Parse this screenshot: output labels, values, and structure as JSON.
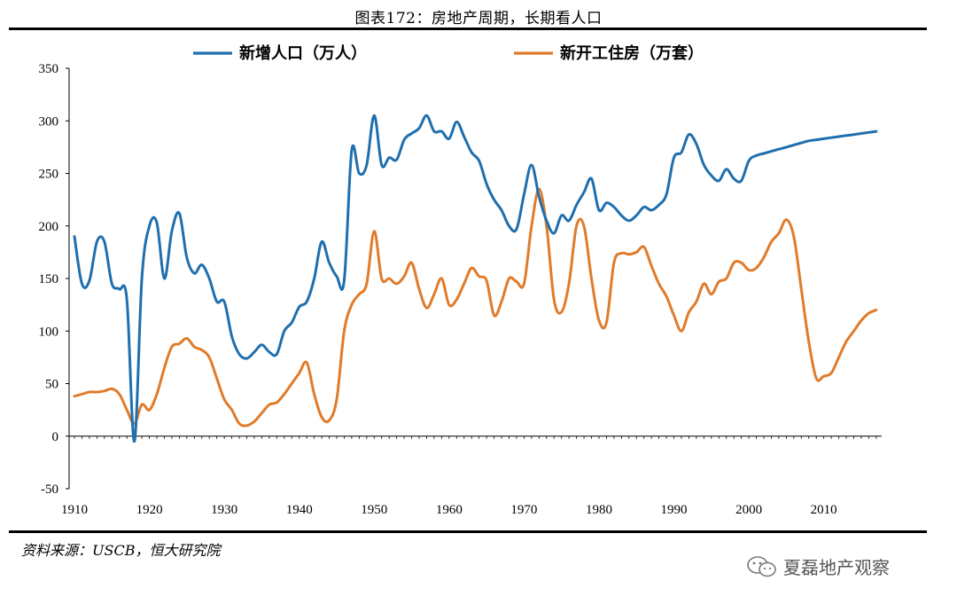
{
  "figure_title": "图表172：房地产周期，长期看人口",
  "source": "资料来源：USCB，恒大研究院",
  "watermark": "夏磊地产观察",
  "chart_data": {
    "type": "line",
    "title": "图表172：房地产周期，长期看人口",
    "xlabel": "",
    "ylabel": "",
    "xlim": [
      1910,
      2017
    ],
    "ylim": [
      -50,
      350
    ],
    "xticks": [
      1910,
      1920,
      1930,
      1940,
      1950,
      1960,
      1970,
      1980,
      1990,
      2000,
      2010
    ],
    "yticks": [
      -50,
      0,
      50,
      100,
      150,
      200,
      250,
      300,
      350
    ],
    "grid": false,
    "legend_position": "top",
    "series": [
      {
        "name": "新增人口（万人）",
        "color": "#1f6fae",
        "x": [
          1910,
          1911,
          1912,
          1913,
          1914,
          1915,
          1916,
          1917,
          1918,
          1919,
          1920,
          1921,
          1922,
          1923,
          1924,
          1925,
          1926,
          1927,
          1928,
          1929,
          1930,
          1931,
          1932,
          1933,
          1934,
          1935,
          1936,
          1937,
          1938,
          1939,
          1940,
          1941,
          1942,
          1943,
          1944,
          1945,
          1946,
          1947,
          1948,
          1949,
          1950,
          1951,
          1952,
          1953,
          1954,
          1955,
          1956,
          1957,
          1958,
          1959,
          1960,
          1961,
          1962,
          1963,
          1964,
          1965,
          1966,
          1967,
          1968,
          1969,
          1970,
          1971,
          1972,
          1973,
          1974,
          1975,
          1976,
          1977,
          1978,
          1979,
          1980,
          1981,
          1982,
          1983,
          1984,
          1985,
          1986,
          1987,
          1988,
          1989,
          1990,
          1991,
          1992,
          1993,
          1994,
          1995,
          1996,
          1997,
          1998,
          1999,
          2000,
          2001,
          2002,
          2003,
          2004,
          2005,
          2006,
          2007,
          2008,
          2009,
          2010,
          2011,
          2012,
          2013,
          2014,
          2015,
          2016,
          2017
        ],
        "values": [
          190,
          145,
          148,
          185,
          185,
          145,
          140,
          130,
          -5,
          150,
          200,
          203,
          150,
          195,
          212,
          170,
          155,
          163,
          150,
          128,
          128,
          95,
          78,
          74,
          80,
          87,
          80,
          78,
          100,
          108,
          123,
          128,
          150,
          185,
          165,
          152,
          148,
          272,
          250,
          258,
          305,
          258,
          265,
          263,
          282,
          288,
          293,
          305,
          290,
          290,
          283,
          299,
          285,
          270,
          262,
          240,
          225,
          215,
          200,
          197,
          230,
          258,
          228,
          205,
          193,
          210,
          205,
          220,
          232,
          245,
          215,
          222,
          218,
          210,
          205,
          210,
          218,
          215,
          220,
          230,
          265,
          270,
          287,
          278,
          258,
          248,
          243,
          254,
          245,
          243,
          262,
          267,
          269,
          271,
          273,
          275,
          277,
          279,
          281,
          282,
          283,
          284,
          285,
          286,
          287,
          288,
          289,
          290
        ]
      },
      {
        "name": "新开工住房（万套）",
        "color": "#e07b2a",
        "x": [
          1910,
          1911,
          1912,
          1913,
          1914,
          1915,
          1916,
          1917,
          1918,
          1919,
          1920,
          1921,
          1922,
          1923,
          1924,
          1925,
          1926,
          1927,
          1928,
          1929,
          1930,
          1931,
          1932,
          1933,
          1934,
          1935,
          1936,
          1937,
          1938,
          1939,
          1940,
          1941,
          1942,
          1943,
          1944,
          1945,
          1946,
          1947,
          1948,
          1949,
          1950,
          1951,
          1952,
          1953,
          1954,
          1955,
          1956,
          1957,
          1958,
          1959,
          1960,
          1961,
          1962,
          1963,
          1964,
          1965,
          1966,
          1967,
          1968,
          1969,
          1970,
          1971,
          1972,
          1973,
          1974,
          1975,
          1976,
          1977,
          1978,
          1979,
          1980,
          1981,
          1982,
          1983,
          1984,
          1985,
          1986,
          1987,
          1988,
          1989,
          1990,
          1991,
          1992,
          1993,
          1994,
          1995,
          1996,
          1997,
          1998,
          1999,
          2000,
          2001,
          2002,
          2003,
          2004,
          2005,
          2006,
          2007,
          2008,
          2009,
          2010,
          2011,
          2012,
          2013,
          2014,
          2015,
          2016,
          2017
        ],
        "values": [
          38,
          40,
          42,
          42,
          43,
          45,
          40,
          25,
          12,
          30,
          25,
          40,
          65,
          85,
          88,
          93,
          85,
          82,
          75,
          55,
          35,
          25,
          12,
          10,
          14,
          22,
          30,
          32,
          40,
          50,
          60,
          70,
          40,
          18,
          15,
          35,
          100,
          125,
          135,
          145,
          195,
          150,
          150,
          145,
          152,
          165,
          140,
          122,
          135,
          150,
          125,
          130,
          145,
          160,
          152,
          148,
          115,
          128,
          150,
          147,
          145,
          200,
          235,
          200,
          130,
          118,
          145,
          200,
          200,
          150,
          110,
          108,
          165,
          174,
          173,
          175,
          180,
          162,
          145,
          133,
          115,
          100,
          118,
          128,
          145,
          135,
          147,
          150,
          165,
          165,
          158,
          160,
          170,
          185,
          193,
          206,
          190,
          140,
          90,
          55,
          57,
          60,
          75,
          90,
          100,
          110,
          117,
          120
        ]
      }
    ]
  }
}
